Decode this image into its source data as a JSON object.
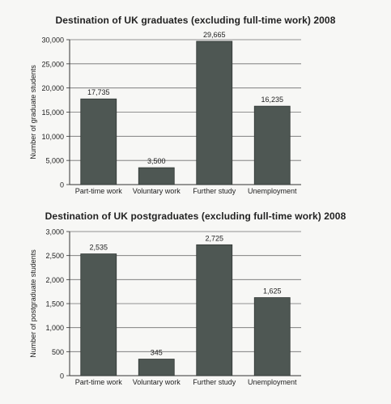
{
  "chart_data": [
    {
      "type": "bar",
      "title": "Destination of UK graduates (excluding full-time work) 2008",
      "xlabel": "",
      "ylabel": "Number of graduate students",
      "categories": [
        "Part-time work",
        "Voluntary work",
        "Further study",
        "Unemployment"
      ],
      "values": [
        17735,
        3500,
        29665,
        16235
      ],
      "data_labels": [
        "17,735",
        "3,500",
        "29,665",
        "16,235"
      ],
      "ylim": [
        0,
        30000
      ],
      "yticks": [
        0,
        5000,
        10000,
        15000,
        20000,
        25000,
        30000
      ],
      "ytick_labels": [
        "0",
        "5,000",
        "10,000",
        "15,000",
        "20,000",
        "25,000",
        "30,000"
      ],
      "grid": true,
      "bar_color": "#4e5753"
    },
    {
      "type": "bar",
      "title": "Destination of UK postgraduates (excluding full-time work) 2008",
      "xlabel": "",
      "ylabel": "Number of postgraduate students",
      "categories": [
        "Part-time work",
        "Voluntary work",
        "Further study",
        "Unemployment"
      ],
      "values": [
        2535,
        345,
        2725,
        1625
      ],
      "data_labels": [
        "2,535",
        "345",
        "2,725",
        "1,625"
      ],
      "ylim": [
        0,
        3000
      ],
      "yticks": [
        0,
        500,
        1000,
        1500,
        2000,
        2500,
        3000
      ],
      "ytick_labels": [
        "0",
        "500",
        "1,000",
        "1,500",
        "2,000",
        "2,500",
        "3,000"
      ],
      "grid": true,
      "bar_color": "#4e5753"
    }
  ]
}
